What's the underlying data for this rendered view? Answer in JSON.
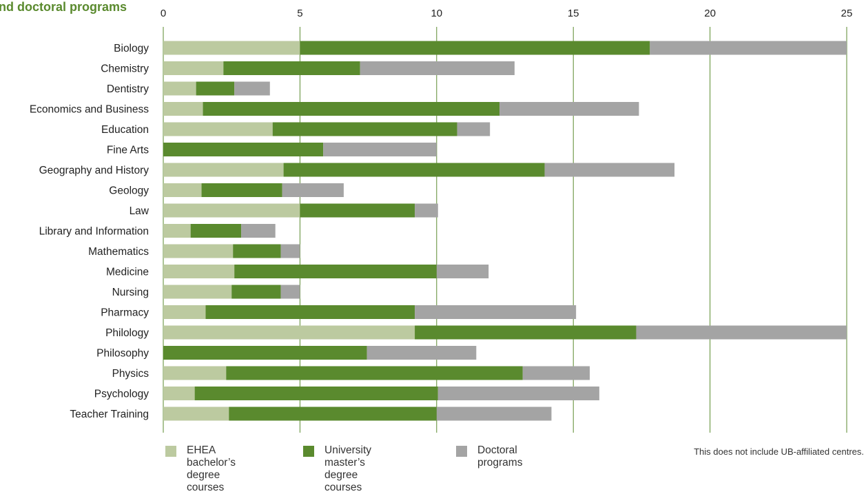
{
  "chart_data": {
    "type": "bar",
    "orientation": "horizontal",
    "stacked": true,
    "title": "nd doctoral programs",
    "xlim": [
      0,
      25
    ],
    "xticks": [
      0,
      5,
      10,
      15,
      20,
      25
    ],
    "grid": true,
    "legend_placement": "bottom",
    "note": "This does not include UB-affiliated centres.",
    "title_color": "#5a8a2e",
    "categories": [
      "Biology",
      "Chemistry",
      "Dentistry",
      "Economics and Business",
      "Education",
      "Fine Arts",
      "Geography and History",
      "Geology",
      "Law",
      "Library and Information",
      "Mathematics",
      "Medicine",
      "Nursing",
      "Pharmacy",
      "Philology",
      "Philosophy",
      "Physics",
      "Psychology",
      "Teacher Training"
    ],
    "series": [
      {
        "name": "EHEA bachelor’s\ndegree courses",
        "color": "#bccaa0",
        "values": [
          5.0,
          2.2,
          1.2,
          1.45,
          4.0,
          0,
          4.4,
          1.4,
          5.0,
          1.0,
          2.55,
          2.6,
          2.5,
          1.55,
          9.2,
          0,
          2.3,
          1.15,
          2.4
        ]
      },
      {
        "name": "University master’s\ndegree courses",
        "color": "#5a8a2e",
        "values": [
          12.8,
          5.0,
          1.4,
          10.85,
          6.75,
          5.85,
          9.55,
          2.95,
          4.2,
          1.85,
          1.75,
          7.4,
          1.8,
          7.65,
          8.1,
          7.45,
          10.85,
          8.9,
          7.6
        ]
      },
      {
        "name": "Doctoral programs",
        "color": "#a4a4a4",
        "values": [
          7.2,
          5.65,
          1.3,
          5.1,
          1.2,
          4.15,
          4.75,
          2.25,
          0.85,
          1.25,
          0.7,
          1.9,
          0.7,
          5.9,
          7.7,
          4.0,
          2.45,
          5.9,
          4.2
        ]
      }
    ]
  }
}
